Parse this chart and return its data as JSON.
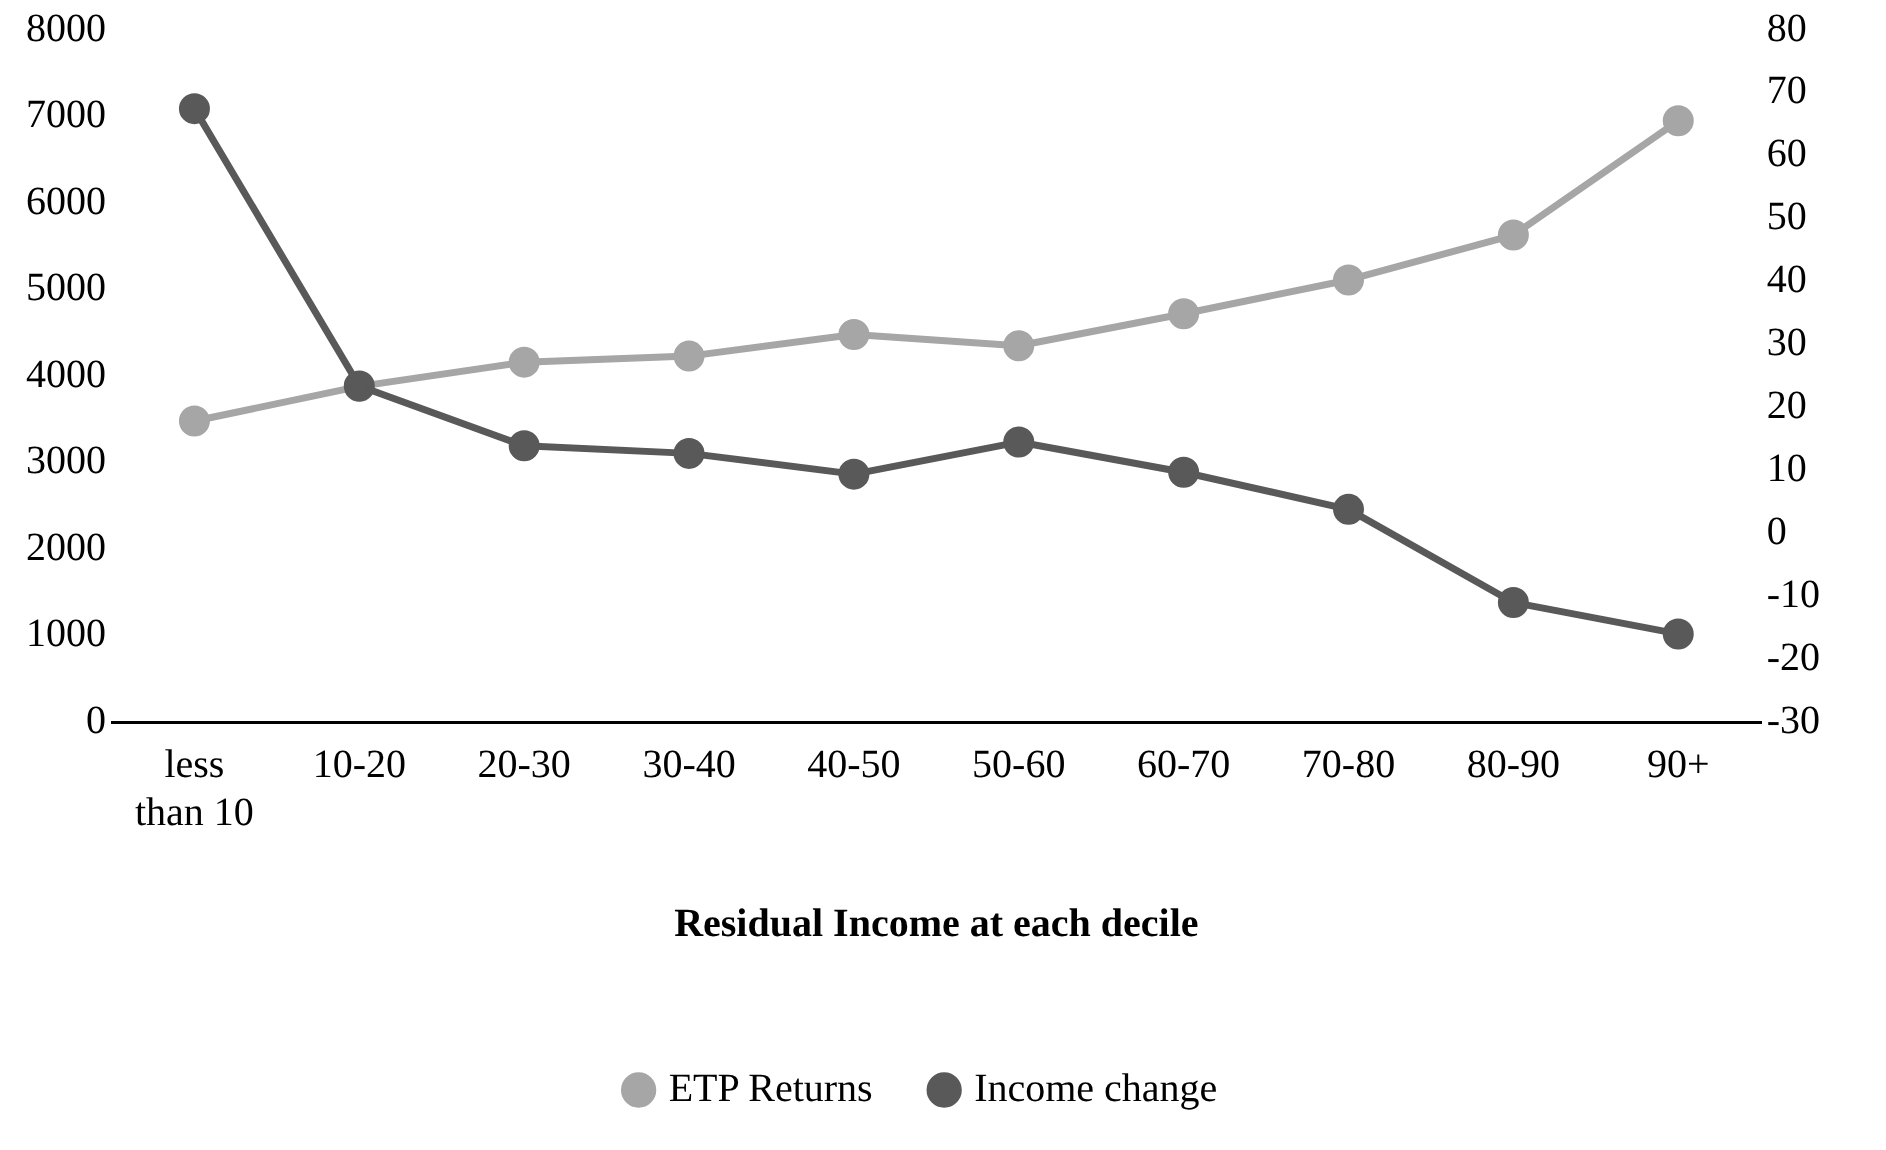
{
  "chart_data": {
    "type": "line",
    "xlabel": "Residual Income at each decile",
    "categories": [
      "less than 10",
      "10-20",
      "20-30",
      "30-40",
      "40-50",
      "50-60",
      "60-70",
      "70-80",
      "80-90",
      "90+"
    ],
    "series": [
      {
        "name": "ETP Returns",
        "color": "#a6a6a6",
        "values": [
          3480,
          3880,
          4160,
          4230,
          4480,
          4350,
          4720,
          5110,
          5630,
          6950
        ]
      },
      {
        "name": "Income change",
        "color": "#595959",
        "axis": "y2",
        "values": [
          67.5,
          23.4,
          13.9,
          12.7,
          9.4,
          14.5,
          9.7,
          3.8,
          -11,
          -16
        ]
      }
    ],
    "ylim": [
      0,
      8000
    ],
    "yticks": [
      0,
      1000,
      2000,
      3000,
      4000,
      5000,
      6000,
      7000,
      8000
    ],
    "y2lim": [
      -30,
      80
    ],
    "y2ticks": [
      -30,
      -20,
      -10,
      0,
      10,
      20,
      30,
      40,
      50,
      60,
      70,
      80
    ],
    "grid": false,
    "legend": "bottom",
    "marker": "circle",
    "line_style": "solid"
  }
}
